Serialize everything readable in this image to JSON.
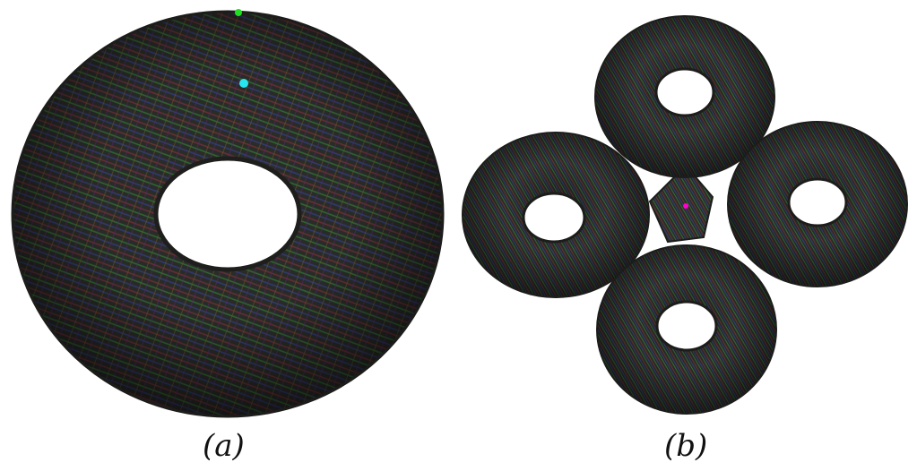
{
  "figure": {
    "panel_a": {
      "caption": "(a)",
      "description_icon": "torus-icon"
    },
    "panel_b": {
      "caption": "(b)",
      "description_icon": "four-torus-icon"
    }
  },
  "colors": {
    "background": "#ffffff",
    "surface": "#2b2d2a",
    "stroke_red": "#b33a3a",
    "stroke_green": "#3aa23a",
    "stroke_blue": "#3a4fb3",
    "marker_cyan": "#27e6f0",
    "marker_green": "#22dd22",
    "marker_magenta": "#ff00cc"
  }
}
